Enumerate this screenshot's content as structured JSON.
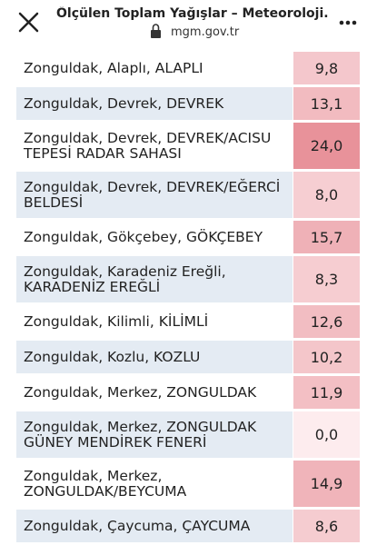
{
  "header": {
    "title": "Ölçülen Toplam Yağışlar – Meteoroloji...",
    "url": "mgm.gov.tr"
  },
  "table": {
    "rows": [
      [
        "Zonguldak, Alaplı, ALAPLI",
        "9,8"
      ],
      [
        "Zonguldak, Devrek, DEVREK",
        "13,1"
      ],
      [
        "Zonguldak, Devrek, DEVREK/ACISU TEPESİ RADAR SAHASI",
        "24,0"
      ],
      [
        "Zonguldak, Devrek, DEVREK/EĞERCİ BELDESİ",
        "8,0"
      ],
      [
        "Zonguldak, Gökçebey, GÖKÇEBEY",
        "15,7"
      ],
      [
        "Zonguldak, Karadeniz Ereğli, KARADENİZ EREĞLİ",
        "8,3"
      ],
      [
        "Zonguldak, Kilimli, KİLİMLİ",
        "12,6"
      ],
      [
        "Zonguldak, Kozlu, KOZLU",
        "10,2"
      ],
      [
        "Zonguldak, Merkez, ZONGULDAK",
        "11,9"
      ],
      [
        "Zonguldak, Merkez, ZONGULDAK GÜNEY MENDİREK FENERİ",
        "0,0"
      ],
      [
        "Zonguldak, Merkez, ZONGULDAK/BEYCUMA",
        "14,9"
      ],
      [
        "Zonguldak, Çaycuma, ÇAYCUMA",
        "8,6"
      ]
    ]
  }
}
